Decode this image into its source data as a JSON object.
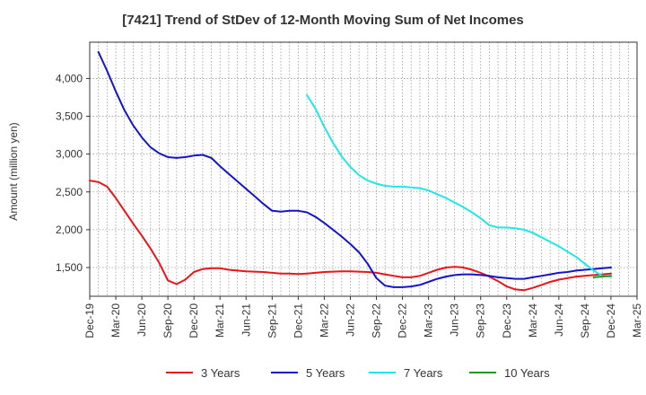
{
  "chart_data": {
    "type": "line",
    "title": "[7421]  Trend of StDev of 12-Month Moving Sum of Net Incomes",
    "ylabel": "Amount (million yen)",
    "xlabel": "",
    "ylim": [
      1120,
      4480
    ],
    "yticks": [
      1500,
      2000,
      2500,
      3000,
      3500,
      4000
    ],
    "ytick_labels": [
      "1,500",
      "2,000",
      "2,500",
      "3,000",
      "3,500",
      "4,000"
    ],
    "xlim": [
      "2019-12",
      "2025-03"
    ],
    "xtick_labels": [
      "Dec-19",
      "Mar-20",
      "Jun-20",
      "Sep-20",
      "Dec-20",
      "Mar-21",
      "Jun-21",
      "Sep-21",
      "Dec-21",
      "Mar-22",
      "Jun-22",
      "Sep-22",
      "Dec-22",
      "Mar-23",
      "Jun-23",
      "Sep-23",
      "Dec-23",
      "Mar-24",
      "Jun-24",
      "Sep-24",
      "Dec-24",
      "Mar-25"
    ],
    "grid": true,
    "legend_position": "bottom",
    "series": [
      {
        "name": "3 Years",
        "color": "#e8161a",
        "x": [
          "2019-12",
          "2020-01",
          "2020-02",
          "2020-03",
          "2020-04",
          "2020-05",
          "2020-06",
          "2020-07",
          "2020-08",
          "2020-09",
          "2020-10",
          "2020-11",
          "2020-12",
          "2021-01",
          "2021-02",
          "2021-03",
          "2021-04",
          "2021-05",
          "2021-06",
          "2021-07",
          "2021-08",
          "2021-09",
          "2021-10",
          "2021-11",
          "2021-12",
          "2022-01",
          "2022-02",
          "2022-03",
          "2022-04",
          "2022-05",
          "2022-06",
          "2022-07",
          "2022-08",
          "2022-09",
          "2022-10",
          "2022-11",
          "2022-12",
          "2023-01",
          "2023-02",
          "2023-03",
          "2023-04",
          "2023-05",
          "2023-06",
          "2023-07",
          "2023-08",
          "2023-09",
          "2023-10",
          "2023-11",
          "2023-12",
          "2024-01",
          "2024-02",
          "2024-03",
          "2024-04",
          "2024-05",
          "2024-06",
          "2024-07",
          "2024-08",
          "2024-09",
          "2024-10",
          "2024-11",
          "2024-12"
        ],
        "values": [
          2650,
          2630,
          2570,
          2420,
          2250,
          2080,
          1920,
          1750,
          1560,
          1330,
          1280,
          1340,
          1440,
          1480,
          1490,
          1490,
          1470,
          1460,
          1450,
          1445,
          1440,
          1430,
          1420,
          1420,
          1415,
          1420,
          1430,
          1440,
          1445,
          1450,
          1450,
          1445,
          1440,
          1430,
          1410,
          1390,
          1370,
          1370,
          1390,
          1430,
          1470,
          1500,
          1510,
          1500,
          1470,
          1430,
          1380,
          1320,
          1250,
          1210,
          1200,
          1230,
          1270,
          1310,
          1340,
          1360,
          1380,
          1390,
          1400,
          1410,
          1420
        ]
      },
      {
        "name": "5 Years",
        "color": "#1515c8",
        "x": [
          "2020-01",
          "2020-02",
          "2020-03",
          "2020-04",
          "2020-05",
          "2020-06",
          "2020-07",
          "2020-08",
          "2020-09",
          "2020-10",
          "2020-11",
          "2020-12",
          "2021-01",
          "2021-02",
          "2021-03",
          "2021-04",
          "2021-05",
          "2021-06",
          "2021-07",
          "2021-08",
          "2021-09",
          "2021-10",
          "2021-11",
          "2021-12",
          "2022-01",
          "2022-02",
          "2022-03",
          "2022-04",
          "2022-05",
          "2022-06",
          "2022-07",
          "2022-08",
          "2022-09",
          "2022-10",
          "2022-11",
          "2022-12",
          "2023-01",
          "2023-02",
          "2023-03",
          "2023-04",
          "2023-05",
          "2023-06",
          "2023-07",
          "2023-08",
          "2023-09",
          "2023-10",
          "2023-11",
          "2023-12",
          "2024-01",
          "2024-02",
          "2024-03",
          "2024-04",
          "2024-05",
          "2024-06",
          "2024-07",
          "2024-08",
          "2024-09",
          "2024-10",
          "2024-11",
          "2024-12"
        ],
        "values": [
          4350,
          4100,
          3830,
          3580,
          3380,
          3220,
          3090,
          3010,
          2960,
          2950,
          2960,
          2980,
          2990,
          2950,
          2840,
          2740,
          2640,
          2540,
          2440,
          2340,
          2250,
          2240,
          2250,
          2250,
          2230,
          2170,
          2090,
          2000,
          1910,
          1810,
          1700,
          1550,
          1360,
          1260,
          1240,
          1240,
          1250,
          1270,
          1310,
          1350,
          1380,
          1400,
          1410,
          1410,
          1400,
          1390,
          1370,
          1360,
          1350,
          1350,
          1370,
          1390,
          1410,
          1430,
          1440,
          1460,
          1470,
          1480,
          1490,
          1500
        ]
      },
      {
        "name": "7 Years",
        "color": "#1ee8e8",
        "x": [
          "2022-01",
          "2022-02",
          "2022-03",
          "2022-04",
          "2022-05",
          "2022-06",
          "2022-07",
          "2022-08",
          "2022-09",
          "2022-10",
          "2022-11",
          "2022-12",
          "2023-01",
          "2023-02",
          "2023-03",
          "2023-04",
          "2023-05",
          "2023-06",
          "2023-07",
          "2023-08",
          "2023-09",
          "2023-10",
          "2023-11",
          "2023-12",
          "2024-01",
          "2024-02",
          "2024-03",
          "2024-04",
          "2024-05",
          "2024-06",
          "2024-07",
          "2024-08",
          "2024-09",
          "2024-10",
          "2024-11",
          "2024-12"
        ],
        "values": [
          3780,
          3600,
          3360,
          3150,
          2970,
          2830,
          2720,
          2650,
          2610,
          2580,
          2570,
          2570,
          2560,
          2550,
          2520,
          2470,
          2420,
          2360,
          2300,
          2230,
          2150,
          2060,
          2030,
          2030,
          2020,
          2000,
          1960,
          1900,
          1840,
          1780,
          1710,
          1640,
          1550,
          1460,
          1390,
          1380
        ]
      },
      {
        "name": "10 Years",
        "color": "#1e9a1e",
        "x": [
          "2024-10",
          "2024-11",
          "2024-12"
        ],
        "values": [
          1370,
          1380,
          1390
        ]
      }
    ]
  }
}
